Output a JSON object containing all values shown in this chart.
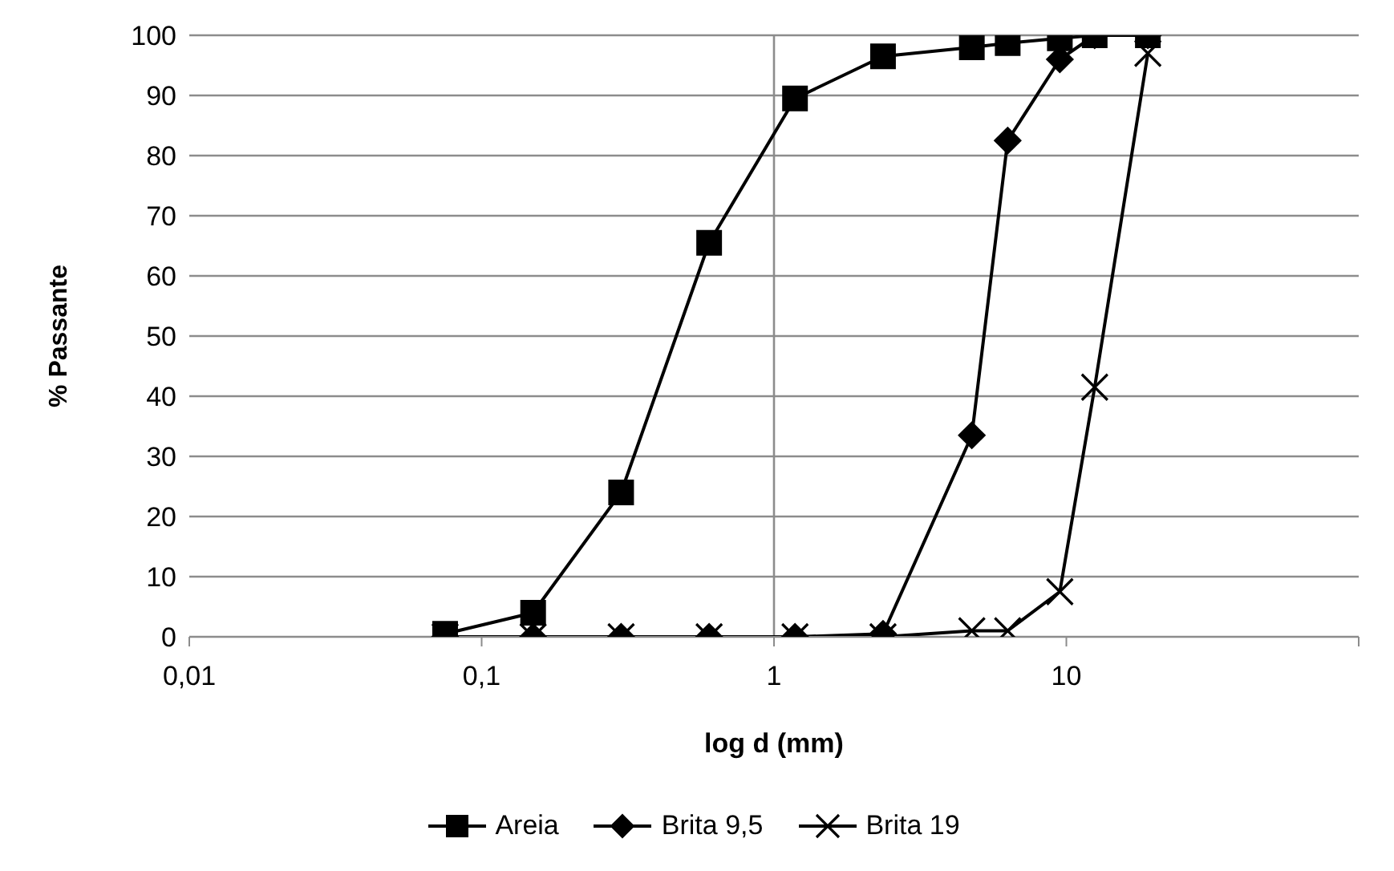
{
  "chart_data": {
    "type": "line",
    "xlabel": "log d (mm)",
    "ylabel": "% Passante",
    "log": "x",
    "x": [
      0.075,
      0.15,
      0.3,
      0.6,
      1.18,
      2.36,
      4.75,
      6.3,
      9.5,
      12.5,
      19
    ],
    "series": [
      {
        "name": "Areia",
        "color": "#000000",
        "marker": "square",
        "values": [
          0.5,
          4,
          24,
          65.5,
          89.5,
          96.5,
          98,
          98.7,
          99.5,
          100,
          100
        ]
      },
      {
        "name": "Brita 9,5",
        "color": "#000000",
        "marker": "diamond",
        "values": [
          0,
          0,
          0,
          0,
          0,
          0.5,
          33.5,
          82.5,
          96,
          100,
          100
        ]
      },
      {
        "name": "Brita 19",
        "color": "#000000",
        "marker": "cross",
        "values": [
          0,
          0,
          0,
          0,
          0,
          0,
          1,
          1,
          7.5,
          41.5,
          97
        ]
      }
    ],
    "xlim": [
      0.01,
      100
    ],
    "xticks": [
      {
        "value": 0.01,
        "label": "0,01"
      },
      {
        "value": 0.1,
        "label": "0,1"
      },
      1,
      10,
      {
        "value": 100,
        "label": null
      }
    ],
    "ylim": [
      0,
      100
    ],
    "yticks": [
      0,
      10,
      20,
      30,
      40,
      50,
      60,
      70,
      80,
      90,
      100
    ],
    "grid": "y",
    "ref_lines": [
      {
        "axis": "x",
        "value": 1,
        "color": "#8c8c8c"
      }
    ],
    "legend": "bottom",
    "line_style": "solid"
  }
}
